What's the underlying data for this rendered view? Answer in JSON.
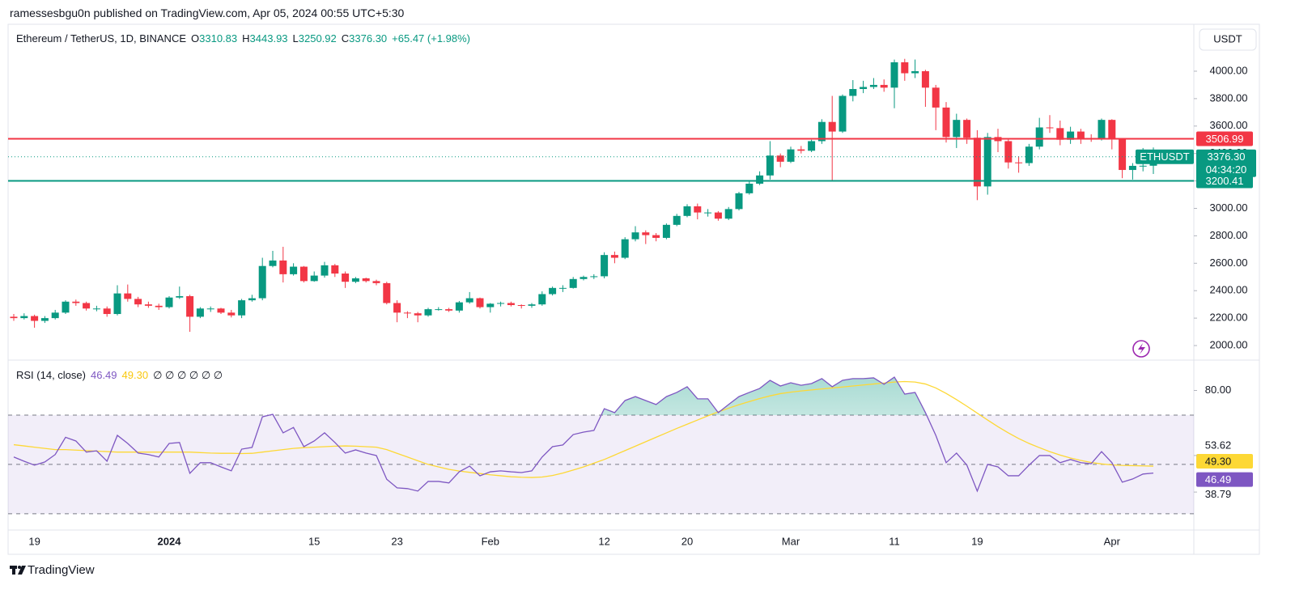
{
  "header": {
    "publisher": "ramessesbgu0n published on TradingView.com, Apr 05, 2024 00:55 UTC+5:30",
    "brand": "TradingView"
  },
  "chart_data": [
    {
      "type": "candlestick",
      "title": "Ethereum / TetherUS, 1D, BINANCE",
      "currency": "USDT",
      "symbol": "ETHUSDT",
      "countdown": "04:34:20",
      "change_label": "+65.47 (+1.98%)",
      "legend_keys": [
        "O",
        "H",
        "L",
        "C"
      ],
      "categories": [
        null,
        null,
        "19",
        null,
        null,
        null,
        null,
        null,
        null,
        null,
        null,
        null,
        null,
        null,
        null,
        "2024",
        null,
        null,
        null,
        null,
        null,
        null,
        null,
        null,
        null,
        null,
        null,
        null,
        null,
        "15",
        null,
        null,
        null,
        null,
        null,
        null,
        null,
        "23",
        null,
        null,
        null,
        null,
        null,
        null,
        null,
        null,
        "Feb",
        null,
        null,
        null,
        null,
        null,
        null,
        null,
        null,
        null,
        null,
        "12",
        null,
        null,
        null,
        null,
        null,
        null,
        null,
        "20",
        null,
        null,
        null,
        null,
        null,
        null,
        null,
        null,
        null,
        "Mar",
        null,
        null,
        null,
        null,
        null,
        null,
        null,
        null,
        null,
        "11",
        null,
        null,
        null,
        null,
        null,
        null,
        null,
        "19",
        null,
        null,
        null,
        null,
        null,
        null,
        null,
        null,
        null,
        null,
        null,
        null,
        "Apr",
        null,
        null,
        null,
        null
      ],
      "open": [
        2210,
        2200,
        2215,
        2180,
        2200,
        2240,
        2320,
        2310,
        2270,
        2270,
        2230,
        2380,
        2340,
        2300,
        2290,
        2280,
        2350,
        2360,
        2210,
        2270,
        2270,
        2240,
        2220,
        2330,
        2345,
        2580,
        2620,
        2520,
        2575,
        2470,
        2510,
        2585,
        2525,
        2465,
        2490,
        2470,
        2455,
        2310,
        2240,
        2235,
        2220,
        2265,
        2265,
        2255,
        2315,
        2345,
        2280,
        2305,
        2310,
        2295,
        2290,
        2300,
        2375,
        2420,
        2420,
        2485,
        2500,
        2505,
        2660,
        2640,
        2775,
        2825,
        2805,
        2785,
        2880,
        2945,
        3015,
        2970,
        2970,
        2925,
        2995,
        3110,
        3180,
        3240,
        3385,
        3340,
        3430,
        3420,
        3490,
        3630,
        3560,
        3820,
        3870,
        3885,
        3900,
        3880,
        4065,
        3985,
        4000,
        3880,
        3735,
        3520,
        3645,
        3515,
        3160,
        3520,
        3490,
        3335,
        3330,
        3450,
        3590,
        3585,
        3500,
        3560,
        3510,
        3505,
        3645,
        3505,
        3280,
        3310,
        3310.83
      ],
      "high": [
        2230,
        2235,
        2225,
        2215,
        2260,
        2330,
        2335,
        2320,
        2290,
        2285,
        2440,
        2445,
        2355,
        2320,
        2305,
        2360,
        2430,
        2370,
        2280,
        2285,
        2275,
        2260,
        2340,
        2370,
        2640,
        2690,
        2720,
        2600,
        2580,
        2540,
        2610,
        2595,
        2540,
        2500,
        2495,
        2480,
        2465,
        2330,
        2250,
        2245,
        2275,
        2280,
        2275,
        2325,
        2390,
        2350,
        2310,
        2320,
        2320,
        2300,
        2310,
        2395,
        2430,
        2440,
        2500,
        2510,
        2520,
        2680,
        2685,
        2790,
        2870,
        2840,
        2820,
        2890,
        2960,
        3030,
        3035,
        2995,
        2980,
        3010,
        3120,
        3195,
        3270,
        3490,
        3400,
        3450,
        3455,
        3500,
        3650,
        3820,
        3830,
        3935,
        3930,
        3950,
        3940,
        4085,
        4090,
        4085,
        4010,
        3900,
        3775,
        3690,
        3655,
        3570,
        3550,
        3580,
        3510,
        3380,
        3470,
        3660,
        3680,
        3640,
        3595,
        3580,
        3540,
        3655,
        3650,
        3510,
        3330,
        3440,
        3443.93
      ],
      "low": [
        2180,
        2190,
        2130,
        2165,
        2190,
        2230,
        2290,
        2255,
        2250,
        2210,
        2220,
        2320,
        2280,
        2275,
        2260,
        2270,
        2340,
        2100,
        2200,
        2245,
        2230,
        2205,
        2200,
        2320,
        2330,
        2570,
        2460,
        2510,
        2460,
        2465,
        2495,
        2500,
        2420,
        2455,
        2460,
        2440,
        2300,
        2170,
        2200,
        2170,
        2210,
        2255,
        2245,
        2240,
        2305,
        2270,
        2240,
        2285,
        2285,
        2270,
        2275,
        2290,
        2365,
        2390,
        2415,
        2475,
        2485,
        2490,
        2600,
        2630,
        2760,
        2740,
        2760,
        2775,
        2870,
        2935,
        2920,
        2940,
        2910,
        2915,
        2985,
        3100,
        3170,
        3210,
        3300,
        3330,
        3400,
        3410,
        3470,
        3200,
        3550,
        3780,
        3840,
        3870,
        3850,
        3730,
        3930,
        3950,
        3740,
        3570,
        3480,
        3440,
        3470,
        3060,
        3100,
        3410,
        3290,
        3260,
        3310,
        3430,
        3550,
        3460,
        3470,
        3470,
        3485,
        3495,
        3430,
        3220,
        3210,
        3270,
        3250.92
      ],
      "close": [
        2200,
        2215,
        2180,
        2200,
        2240,
        2320,
        2310,
        2270,
        2270,
        2230,
        2380,
        2340,
        2300,
        2290,
        2280,
        2350,
        2360,
        2210,
        2270,
        2270,
        2240,
        2220,
        2330,
        2345,
        2580,
        2620,
        2520,
        2575,
        2470,
        2510,
        2585,
        2525,
        2465,
        2490,
        2470,
        2455,
        2310,
        2240,
        2235,
        2220,
        2265,
        2265,
        2255,
        2315,
        2345,
        2280,
        2305,
        2310,
        2295,
        2290,
        2300,
        2375,
        2420,
        2420,
        2485,
        2500,
        2505,
        2660,
        2640,
        2775,
        2825,
        2805,
        2785,
        2880,
        2945,
        3015,
        2970,
        2970,
        2925,
        2995,
        3110,
        3180,
        3240,
        3385,
        3340,
        3430,
        3420,
        3490,
        3630,
        3560,
        3820,
        3870,
        3885,
        3900,
        3880,
        4065,
        3985,
        4000,
        3880,
        3735,
        3520,
        3645,
        3515,
        3160,
        3520,
        3490,
        3335,
        3330,
        3450,
        3590,
        3585,
        3500,
        3560,
        3510,
        3505,
        3645,
        3505,
        3280,
        3310,
        3310.83,
        3376.3
      ],
      "close_labels": [
        null,
        null,
        null,
        null,
        null,
        null,
        null,
        null,
        null,
        null,
        null,
        null,
        null,
        null,
        null,
        null,
        null,
        null,
        null,
        null,
        null,
        null,
        null,
        null,
        null,
        null,
        null,
        null,
        null,
        null,
        null,
        null,
        null,
        null,
        null,
        null,
        null,
        null,
        null,
        null,
        null,
        null,
        null,
        null,
        null,
        null,
        null,
        null,
        null,
        null,
        null,
        null,
        null,
        null,
        null,
        null,
        null,
        null,
        null,
        null,
        null,
        null,
        null,
        null,
        null,
        null,
        null,
        null,
        null,
        null,
        null,
        null,
        null,
        null,
        null,
        null,
        null,
        null,
        null,
        null,
        null,
        null,
        null,
        null,
        null,
        null,
        null,
        null,
        null,
        null,
        null,
        null,
        null,
        null,
        null,
        null,
        null,
        null,
        null,
        null,
        null,
        null,
        null,
        null,
        null,
        null,
        null,
        null,
        null,
        null,
        "3376.30"
      ],
      "up_color": "#089981",
      "down_color": "#f23645",
      "ylim": [
        1894,
        4342
      ],
      "yticks": [
        {
          "value": 2000,
          "label": "2000.00"
        },
        {
          "value": 2200,
          "label": "2200.00"
        },
        {
          "value": 2400,
          "label": "2400.00"
        },
        {
          "value": 2600,
          "label": "2600.00"
        },
        {
          "value": 2800,
          "label": "2800.00"
        },
        {
          "value": 3000,
          "label": "3000.00"
        },
        {
          "value": 3200,
          "label": "3200.00"
        },
        {
          "value": 3400,
          "label": "3400.00"
        },
        {
          "value": 3600,
          "label": "3600.00"
        },
        {
          "value": 3800,
          "label": "3800.00"
        },
        {
          "value": 4000,
          "label": "4000.00"
        }
      ],
      "hlines": [
        {
          "value": 3506.99,
          "color": "#f23645"
        },
        {
          "value": 3200.41,
          "color": "#089981"
        }
      ]
    },
    {
      "type": "line",
      "title": "RSI (14, close)",
      "extra": "∅ ∅ ∅ ∅ ∅ ∅",
      "bands": [
        70,
        50,
        30
      ],
      "band_color": "#7e57c2",
      "series": [
        {
          "color": "#7e57c2",
          "values": [
            53,
            51.3,
            49.7,
            51,
            54,
            61,
            59.5,
            55,
            55.5,
            51.3,
            61.8,
            58.5,
            54.6,
            54,
            53,
            58.5,
            58.9,
            46.4,
            50.7,
            50.7,
            49,
            47.4,
            56.2,
            56.9,
            69.3,
            70.3,
            62.8,
            65,
            57.2,
            59.5,
            62.8,
            58.9,
            54.6,
            55.9,
            54.6,
            53.6,
            44,
            40.5,
            40.2,
            39.2,
            43.1,
            43.1,
            42.5,
            47,
            49.3,
            45.4,
            47,
            47.4,
            47,
            46.7,
            47.4,
            53,
            57.2,
            57.9,
            62.1,
            63.1,
            63.8,
            72.6,
            71,
            75.9,
            77.5,
            75.9,
            74.3,
            77.5,
            79.2,
            81.5,
            76.6,
            76.6,
            71,
            74.3,
            77.5,
            79.2,
            80.8,
            84.1,
            81.8,
            83.1,
            82.1,
            82.8,
            84.8,
            81.5,
            84.1,
            84.8,
            84.8,
            85.1,
            82.5,
            85.4,
            78.5,
            79.2,
            71,
            61.8,
            50.7,
            54.6,
            49.7,
            39.2,
            50,
            49,
            45.4,
            45.4,
            49.7,
            53.6,
            53.6,
            50.7,
            52,
            50.7,
            50.3,
            55.2,
            50.7,
            42.8,
            44.1,
            46.1,
            46.49
          ]
        },
        {
          "color": "#fdd835",
          "values": [
            58,
            57.5,
            57,
            56.5,
            56,
            56,
            55.8,
            55.6,
            55.4,
            55.2,
            55,
            55,
            55,
            55,
            55,
            55,
            55,
            55,
            54.8,
            54.6,
            54.5,
            54.5,
            54.4,
            54.5,
            55,
            55.5,
            56,
            56.5,
            56.8,
            57,
            57.2,
            57.4,
            57.5,
            57.4,
            57.2,
            57,
            56,
            54.5,
            53,
            51.5,
            50,
            49,
            48,
            47.3,
            46.8,
            46.3,
            45.8,
            45.4,
            45,
            44.8,
            44.7,
            44.9,
            45.5,
            46.5,
            47.7,
            49,
            50.5,
            52,
            53.8,
            55.6,
            57.4,
            59.2,
            61,
            62.8,
            64.6,
            66.3,
            68,
            69.7,
            71.3,
            72.8,
            74.2,
            75.5,
            76.7,
            77.8,
            78.7,
            79.3,
            79.8,
            80.2,
            80.6,
            81,
            81.4,
            81.8,
            82.2,
            82.6,
            83,
            83.4,
            83.6,
            83.4,
            82.6,
            81,
            78.8,
            76.3,
            73.6,
            70.8,
            68,
            65.3,
            62.8,
            60.5,
            58.5,
            56.8,
            55.2,
            53.8,
            52.6,
            51.6,
            50.8,
            50.2,
            49.8,
            49.6,
            49.5,
            49.4,
            49.3
          ],
          "value_labels": [
            null,
            null,
            null,
            null,
            null,
            null,
            null,
            null,
            null,
            null,
            null,
            null,
            null,
            null,
            null,
            null,
            null,
            null,
            null,
            null,
            null,
            null,
            null,
            null,
            null,
            null,
            null,
            null,
            null,
            null,
            null,
            null,
            null,
            null,
            null,
            null,
            null,
            null,
            null,
            null,
            null,
            null,
            null,
            null,
            null,
            null,
            null,
            null,
            null,
            null,
            null,
            null,
            null,
            null,
            null,
            null,
            null,
            null,
            null,
            null,
            null,
            null,
            null,
            null,
            null,
            null,
            null,
            null,
            null,
            null,
            null,
            null,
            null,
            null,
            null,
            null,
            null,
            null,
            null,
            null,
            null,
            null,
            null,
            null,
            null,
            null,
            null,
            null,
            null,
            null,
            null,
            null,
            null,
            null,
            null,
            null,
            null,
            null,
            null,
            null,
            null,
            null,
            null,
            null,
            null,
            null,
            null,
            null,
            null,
            null,
            "49.30"
          ]
        }
      ],
      "ylim": [
        23.4,
        92.3
      ],
      "yticks": [
        {
          "value": 80,
          "label": "80.00"
        },
        53.62,
        38.79
      ]
    }
  ]
}
